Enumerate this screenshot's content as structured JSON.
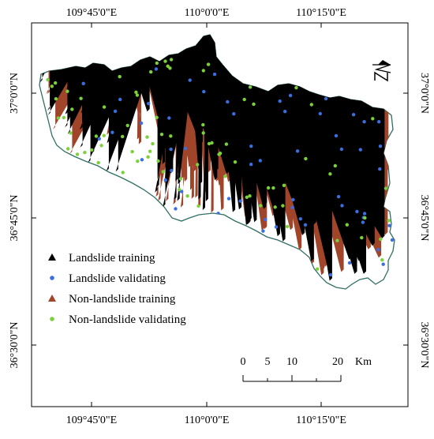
{
  "map": {
    "top_ticks": [
      "109°45'0\"E",
      "110°0'0\"E",
      "110°15'0\"E"
    ],
    "bottom_ticks": [
      "109°45'0\"E",
      "110°0'0\"E",
      "110°15'0\"E"
    ],
    "left_ticks": [
      "37°0'0\"N",
      "36°45'0\"N",
      "36°30'0\"N"
    ],
    "right_ticks": [
      "37°0'0\"N",
      "36°45'0\"N",
      "36°30'0\"N"
    ],
    "colors": {
      "boundary": "#2f6f64",
      "landslide_training": "#000000",
      "landslide_validating": "#3b6fe0",
      "nonlandslide_training": "#a0452a",
      "nonlandslide_validating": "#7bd13a"
    }
  },
  "legend": {
    "items": [
      {
        "label": "Landslide training",
        "symbol": "triangle",
        "color": "#000000"
      },
      {
        "label": "Landslide validating",
        "symbol": "circle",
        "color": "#3b6fe0"
      },
      {
        "label": "Non-landslide training",
        "symbol": "triangle",
        "color": "#a0452a"
      },
      {
        "label": "Non-landslide validating",
        "symbol": "circle",
        "color": "#7bd13a"
      }
    ]
  },
  "scale_bar": {
    "labels": [
      "0",
      "5",
      "10",
      "20"
    ],
    "unit": "Km"
  },
  "north_arrow": {
    "icon": "north-arrow-icon",
    "label": "N"
  }
}
